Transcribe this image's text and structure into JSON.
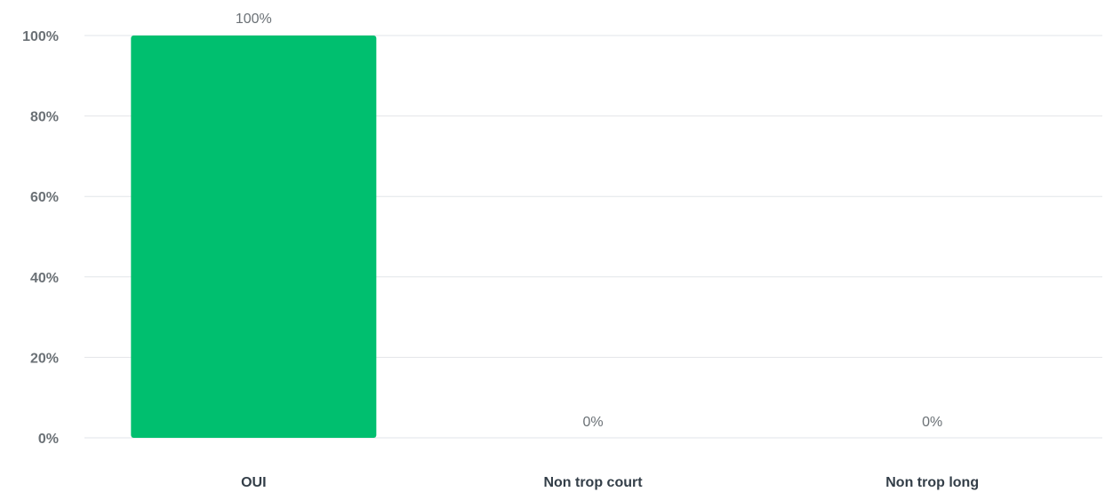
{
  "chart_data": {
    "type": "bar",
    "categories": [
      "OUI",
      "Non trop court",
      "Non trop long"
    ],
    "values": [
      100,
      0,
      0
    ],
    "data_labels": [
      "100%",
      "0%",
      "0%"
    ],
    "y_ticks": [
      "0%",
      "20%",
      "40%",
      "60%",
      "80%",
      "100%"
    ],
    "y_tick_values": [
      0,
      20,
      40,
      60,
      80,
      100
    ],
    "ylim": [
      0,
      100
    ],
    "grid": true,
    "bar_color": "#00bf6f",
    "title": "",
    "xlabel": "",
    "ylabel": ""
  }
}
